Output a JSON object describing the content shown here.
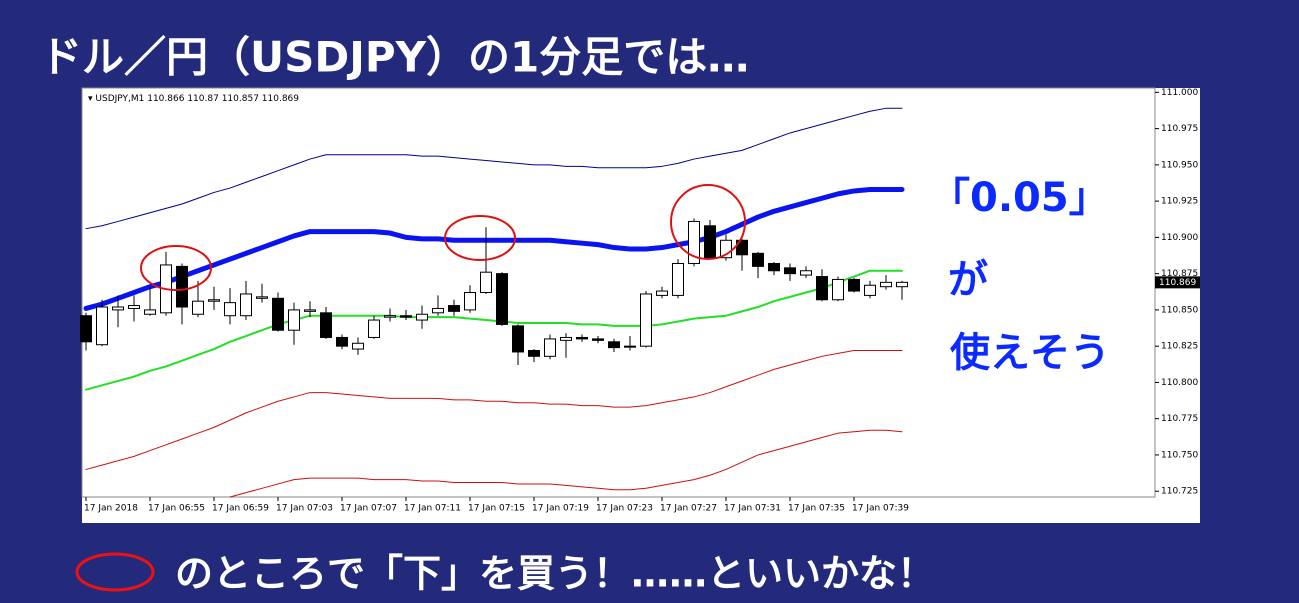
{
  "title": "ドル／円（USDJPY）の1分足では…",
  "notes": [
    "「0.05」",
    "が",
    "使えそう"
  ],
  "footer": "のところで「下」を買う！……といいかな！",
  "chart_data": {
    "type": "candlestick",
    "symbol": "USDJPY,M1",
    "categories": [
      "17 Jan 2018",
      null,
      null,
      null,
      "17 Jan 06:55",
      null,
      null,
      null,
      "17 Jan 06:59",
      null,
      null,
      null,
      "17 Jan 07:03",
      null,
      null,
      null,
      "17 Jan 07:07",
      null,
      null,
      null,
      "17 Jan 07:11",
      null,
      null,
      null,
      "17 Jan 07:15",
      null,
      null,
      null,
      "17 Jan 07:19",
      null,
      null,
      null,
      "17 Jan 07:23",
      null,
      null,
      null,
      "17 Jan 07:27",
      null,
      null,
      null,
      "17 Jan 07:31",
      null,
      null,
      null,
      "17 Jan 07:35",
      null,
      null,
      null,
      "17 Jan 07:39",
      null,
      null,
      null
    ],
    "open": [
      110.846,
      110.826,
      110.85,
      110.851,
      110.847,
      110.848,
      110.88,
      110.847,
      110.856,
      110.846,
      110.846,
      110.858,
      110.858,
      110.836,
      110.849,
      110.848,
      110.831,
      110.823,
      110.831,
      110.845,
      110.846,
      110.843,
      110.848,
      110.853,
      110.85,
      110.862,
      110.875,
      110.839,
      110.822,
      110.818,
      110.829,
      110.831,
      110.83,
      110.828,
      110.825,
      110.825,
      110.86,
      110.86,
      110.882,
      110.908,
      110.886,
      110.898,
      110.889,
      110.882,
      110.879,
      110.874,
      110.873,
      110.857,
      110.871,
      110.86,
      110.866,
      110.866
    ],
    "high": [
      110.848,
      110.857,
      110.86,
      110.86,
      110.866,
      110.89,
      110.882,
      110.87,
      110.866,
      110.865,
      110.87,
      110.868,
      110.862,
      110.855,
      110.856,
      110.852,
      110.833,
      110.831,
      110.846,
      110.851,
      110.85,
      110.853,
      110.86,
      110.857,
      110.867,
      110.907,
      110.876,
      110.84,
      110.823,
      110.833,
      110.834,
      110.833,
      110.832,
      110.83,
      110.832,
      110.863,
      110.866,
      110.885,
      110.913,
      110.912,
      110.902,
      110.899,
      110.89,
      110.883,
      110.882,
      110.88,
      110.878,
      110.873,
      110.872,
      110.87,
      110.874,
      110.87
    ],
    "low": [
      110.822,
      110.825,
      110.838,
      110.842,
      110.846,
      110.846,
      110.84,
      110.845,
      110.85,
      110.84,
      110.843,
      110.855,
      110.835,
      110.826,
      110.845,
      110.83,
      110.823,
      110.819,
      110.83,
      110.842,
      110.843,
      110.837,
      110.846,
      110.846,
      110.848,
      110.861,
      110.839,
      110.812,
      110.814,
      110.816,
      110.817,
      110.828,
      110.827,
      110.821,
      110.822,
      110.824,
      110.858,
      110.858,
      110.88,
      110.885,
      110.884,
      110.877,
      110.872,
      110.874,
      110.87,
      110.872,
      110.856,
      110.856,
      110.862,
      110.858,
      110.864,
      110.857
    ],
    "close": [
      110.828,
      110.852,
      110.852,
      110.853,
      110.85,
      110.881,
      110.852,
      110.856,
      110.857,
      110.855,
      110.861,
      110.859,
      110.836,
      110.85,
      110.85,
      110.831,
      110.825,
      110.827,
      110.843,
      110.846,
      110.845,
      110.847,
      110.851,
      110.849,
      110.862,
      110.876,
      110.84,
      110.821,
      110.818,
      110.83,
      110.831,
      110.83,
      110.829,
      110.824,
      110.825,
      110.861,
      110.863,
      110.882,
      110.911,
      110.886,
      110.898,
      110.888,
      110.88,
      110.877,
      110.875,
      110.877,
      110.857,
      110.871,
      110.863,
      110.867,
      110.869,
      110.869
    ],
    "series": [
      {
        "color": "#00008b",
        "width": 1,
        "values": [
          110.906,
          110.908,
          110.911,
          110.914,
          110.917,
          110.92,
          110.923,
          110.927,
          110.931,
          110.934,
          110.938,
          110.942,
          110.946,
          110.95,
          110.954,
          110.957,
          110.957,
          110.957,
          110.957,
          110.957,
          110.957,
          110.956,
          110.956,
          110.955,
          110.954,
          110.953,
          110.952,
          110.951,
          110.95,
          110.95,
          110.949,
          110.949,
          110.948,
          110.948,
          110.948,
          110.948,
          110.949,
          110.951,
          110.954,
          110.956,
          110.958,
          110.96,
          110.964,
          110.968,
          110.972,
          110.975,
          110.978,
          110.981,
          110.984,
          110.987,
          110.989,
          110.989
        ]
      },
      {
        "color": "#0a14f0",
        "width": 5,
        "values": [
          110.851,
          110.854,
          110.858,
          110.862,
          110.866,
          110.869,
          110.873,
          110.877,
          110.881,
          110.885,
          110.889,
          110.893,
          110.897,
          110.901,
          110.904,
          110.904,
          110.904,
          110.904,
          110.904,
          110.903,
          110.9,
          110.899,
          110.899,
          110.898,
          110.898,
          110.898,
          110.898,
          110.898,
          110.898,
          110.898,
          110.897,
          110.896,
          110.895,
          110.893,
          110.892,
          110.892,
          110.893,
          110.895,
          110.897,
          110.9,
          110.904,
          110.909,
          110.914,
          110.918,
          110.921,
          110.924,
          110.927,
          110.93,
          110.932,
          110.933,
          110.933,
          110.933
        ]
      },
      {
        "color": "#22e022",
        "width": 2,
        "values": [
          110.795,
          110.798,
          110.801,
          110.804,
          110.808,
          110.811,
          110.815,
          110.819,
          110.823,
          110.828,
          110.832,
          110.836,
          110.84,
          110.843,
          110.846,
          110.846,
          110.846,
          110.846,
          110.846,
          110.846,
          110.845,
          110.845,
          110.845,
          110.845,
          110.844,
          110.843,
          110.842,
          110.841,
          110.841,
          110.841,
          110.841,
          110.84,
          110.84,
          110.839,
          110.839,
          110.839,
          110.84,
          110.842,
          110.844,
          110.845,
          110.846,
          110.849,
          110.852,
          110.856,
          110.859,
          110.862,
          110.865,
          110.869,
          110.873,
          110.877,
          110.877,
          110.877
        ]
      },
      {
        "color": "#cc1010",
        "width": 1,
        "values": [
          110.74,
          110.743,
          110.746,
          110.749,
          110.753,
          110.757,
          110.761,
          110.765,
          110.769,
          110.774,
          110.779,
          110.783,
          110.787,
          110.79,
          110.793,
          110.793,
          110.792,
          110.791,
          110.79,
          110.789,
          110.789,
          110.789,
          110.789,
          110.788,
          110.788,
          110.787,
          110.787,
          110.786,
          110.786,
          110.785,
          110.785,
          110.784,
          110.784,
          110.783,
          110.783,
          110.784,
          110.786,
          110.788,
          110.79,
          110.793,
          110.797,
          110.801,
          110.805,
          110.809,
          110.812,
          110.815,
          110.818,
          110.82,
          110.822,
          110.822,
          110.822,
          110.822
        ]
      },
      {
        "color": "#cc1010",
        "width": 1,
        "values": [
          null,
          null,
          null,
          null,
          null,
          null,
          null,
          null,
          null,
          110.721,
          110.724,
          110.727,
          110.73,
          110.733,
          110.734,
          110.734,
          110.734,
          110.734,
          110.733,
          110.733,
          110.733,
          110.732,
          110.732,
          110.731,
          110.731,
          110.731,
          110.731,
          110.73,
          110.73,
          110.73,
          110.729,
          110.728,
          110.727,
          110.726,
          110.726,
          110.727,
          110.729,
          110.731,
          110.733,
          110.736,
          110.74,
          110.745,
          110.75,
          110.753,
          110.756,
          110.759,
          110.762,
          110.765,
          110.766,
          110.767,
          110.767,
          110.766
        ]
      }
    ],
    "up_color": "#ffffff",
    "down_color": "#000000",
    "ylim": [
      110.721,
      111.003
    ],
    "yticks": [
      {
        "value": 111,
        "label": "111.000"
      },
      110.975,
      {
        "value": 110.95,
        "label": "110.950"
      },
      110.925,
      {
        "value": 110.9,
        "label": "110.900"
      },
      110.875,
      {
        "value": 110.85,
        "label": "110.850"
      },
      110.825,
      {
        "value": 110.8,
        "label": "110.800"
      },
      110.775,
      {
        "value": 110.75,
        "label": "110.750"
      },
      110.725
    ]
  }
}
